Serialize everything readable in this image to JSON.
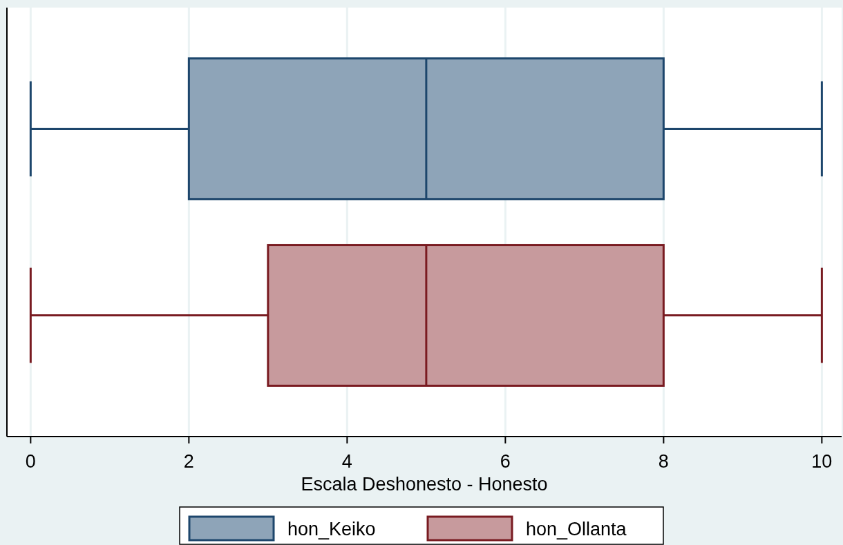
{
  "chart_data": {
    "type": "box",
    "orientation": "horizontal",
    "xlabel": "Escala Deshonesto - Honesto",
    "categories": [
      null
    ],
    "series": [
      {
        "name": "hon_Keiko",
        "color": "#8ea4b8",
        "boxes": [
          {
            "low": 0,
            "q1": 2,
            "median": 5,
            "q3": 8,
            "high": 10
          }
        ]
      },
      {
        "name": "hon_Ollanta",
        "color": "#c79a9d",
        "boxes": [
          {
            "low": 0,
            "q1": 3,
            "median": 5,
            "q3": 8,
            "high": 10
          }
        ]
      }
    ],
    "xlim": [
      -0.3,
      10.25
    ],
    "xticks": [
      0,
      2,
      4,
      6,
      8,
      10
    ],
    "grid": "x",
    "legend": "bottom"
  }
}
